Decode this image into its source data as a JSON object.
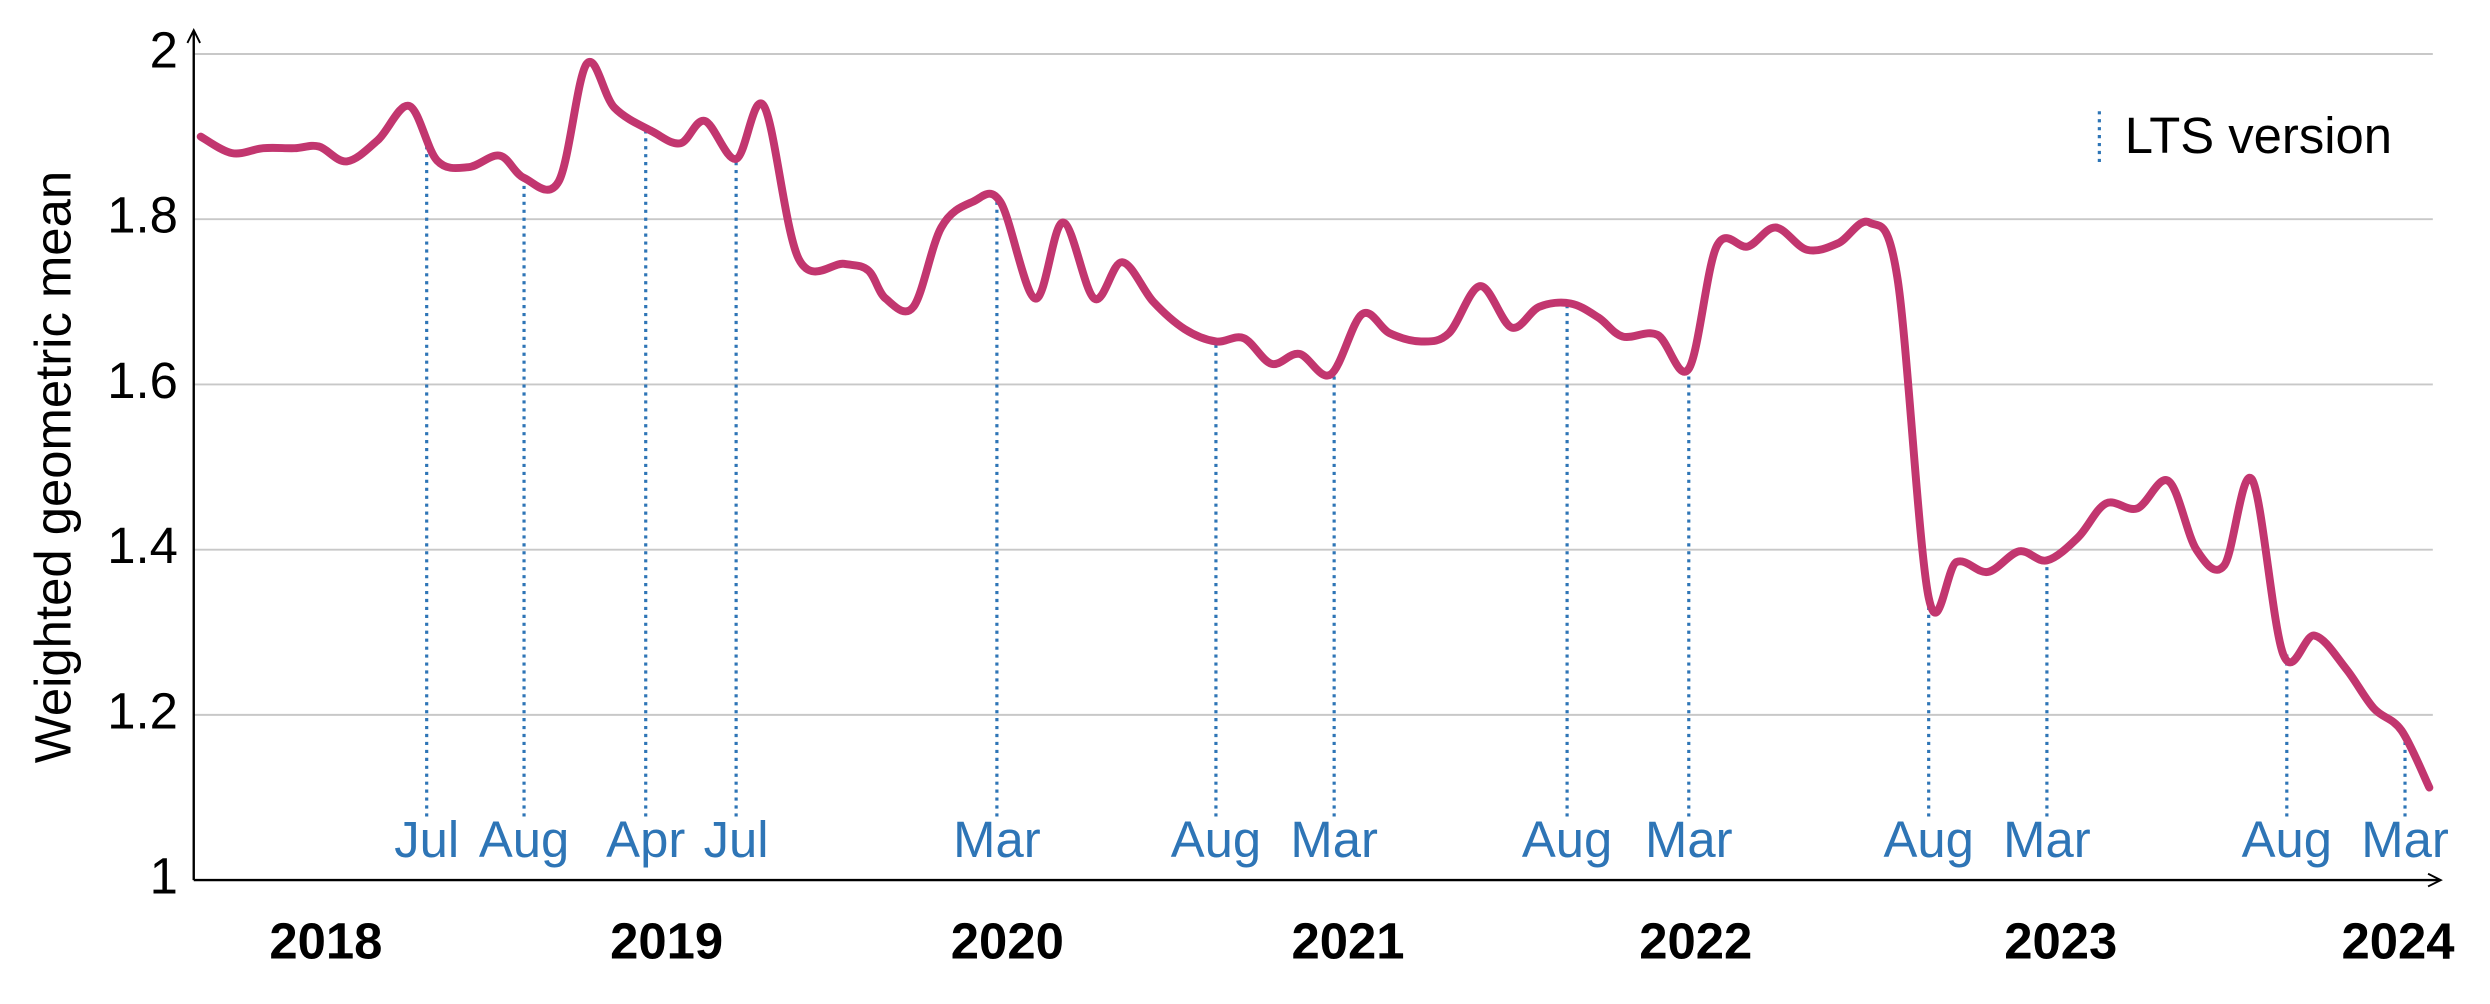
{
  "chart_data": {
    "type": "line",
    "y_label": "Weighted geometric mean",
    "xlim": [
      2017.86,
      2024.3
    ],
    "ylim": [
      1,
      2
    ],
    "yticks": [
      1,
      1.2,
      1.4,
      1.6,
      1.8,
      2
    ],
    "xticks": [
      {
        "value": 2018.24,
        "label": "2018"
      },
      {
        "value": 2019.22,
        "label": "2019"
      },
      {
        "value": 2020.2,
        "label": "2020"
      },
      {
        "value": 2021.18,
        "label": "2021"
      },
      {
        "value": 2022.18,
        "label": "2022"
      },
      {
        "value": 2023.23,
        "label": "2023"
      },
      {
        "value": 2024.2,
        "label": "2024"
      }
    ],
    "grid": true,
    "series": [
      {
        "color": "#c2366f",
        "x": [
          2017.88,
          2017.97,
          2018.06,
          2018.15,
          2018.22,
          2018.3,
          2018.39,
          2018.48,
          2018.56,
          2018.65,
          2018.74,
          2018.81,
          2018.91,
          2018.99,
          2019.07,
          2019.18,
          2019.26,
          2019.33,
          2019.42,
          2019.5,
          2019.6,
          2019.73,
          2019.8,
          2019.85,
          2019.93,
          2020.01,
          2020.1,
          2020.18,
          2020.28,
          2020.36,
          2020.45,
          2020.53,
          2020.62,
          2020.71,
          2020.8,
          2020.88,
          2020.96,
          2021.04,
          2021.13,
          2021.22,
          2021.3,
          2021.39,
          2021.47,
          2021.56,
          2021.65,
          2021.73,
          2021.82,
          2021.9,
          2021.97,
          2022.07,
          2022.16,
          2022.24,
          2022.33,
          2022.41,
          2022.5,
          2022.59,
          2022.68,
          2022.76,
          2022.85,
          2022.93,
          2023.02,
          2023.11,
          2023.19,
          2023.28,
          2023.36,
          2023.45,
          2023.54,
          2023.62,
          2023.7,
          2023.78,
          2023.87,
          2023.96,
          2024.05,
          2024.13,
          2024.21,
          2024.29
        ],
        "values": [
          1.9,
          1.88,
          1.886,
          1.886,
          1.888,
          1.87,
          1.896,
          1.937,
          1.871,
          1.863,
          1.877,
          1.85,
          1.846,
          1.988,
          1.935,
          1.906,
          1.892,
          1.919,
          1.873,
          1.937,
          1.752,
          1.746,
          1.738,
          1.704,
          1.694,
          1.79,
          1.821,
          1.821,
          1.704,
          1.796,
          1.704,
          1.748,
          1.7,
          1.667,
          1.652,
          1.656,
          1.625,
          1.637,
          1.612,
          1.685,
          1.662,
          1.652,
          1.662,
          1.719,
          1.669,
          1.694,
          1.698,
          1.681,
          1.658,
          1.66,
          1.619,
          1.767,
          1.767,
          1.79,
          1.763,
          1.771,
          1.796,
          1.729,
          1.342,
          1.385,
          1.373,
          1.398,
          1.387,
          1.415,
          1.456,
          1.45,
          1.483,
          1.4,
          1.381,
          1.485,
          1.273,
          1.296,
          1.256,
          1.208,
          1.181,
          1.112
        ]
      }
    ],
    "lts_releases": {
      "name": "LTS version",
      "color": "#2e75b6",
      "x": [
        2018.53,
        2018.81,
        2019.16,
        2019.42,
        2020.17,
        2020.8,
        2021.14,
        2021.81,
        2022.16,
        2022.85,
        2023.19,
        2023.88,
        2024.22
      ],
      "labels": [
        "Jul",
        "Aug",
        "Apr",
        "Jul",
        "Mar",
        "Aug",
        "Mar",
        "Aug",
        "Mar",
        "Aug",
        "Mar",
        "Aug",
        "Mar"
      ]
    }
  }
}
